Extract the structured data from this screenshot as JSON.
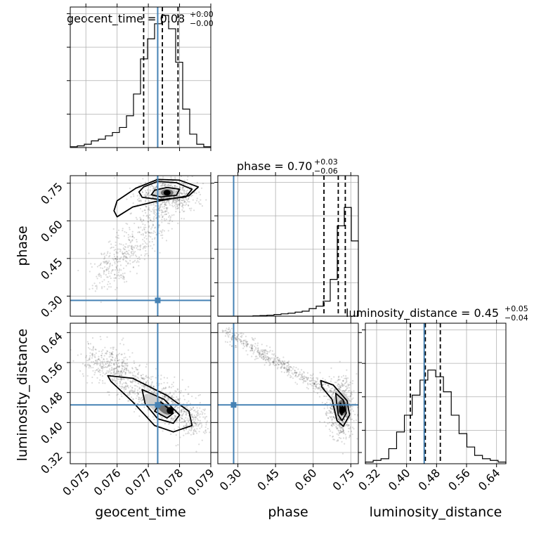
{
  "chart_data": {
    "type": "corner",
    "parameters": [
      "geocent_time",
      "phase",
      "luminosity_distance"
    ],
    "truths": {
      "geocent_time": 0.0773,
      "phase": 0.283,
      "luminosity_distance": 0.447
    },
    "ranges": {
      "geocent_time": [
        0.0745,
        0.079
      ],
      "phase": [
        0.22,
        0.78
      ],
      "luminosity_distance": [
        0.29,
        0.665
      ]
    },
    "ticks": {
      "geocent_time": {
        "values": [
          0.075,
          0.076,
          0.077,
          0.078,
          0.079
        ],
        "labels": [
          "0.075",
          "0.076",
          "0.077",
          "0.078",
          "0.079"
        ]
      },
      "phase": {
        "values": [
          0.3,
          0.45,
          0.6,
          0.75
        ],
        "labels": [
          "0.30",
          "0.45",
          "0.60",
          "0.75"
        ]
      },
      "luminosity_distance": {
        "values": [
          0.32,
          0.4,
          0.48,
          0.56,
          0.64
        ],
        "labels": [
          "0.32",
          "0.40",
          "0.48",
          "0.56",
          "0.64"
        ]
      }
    },
    "titles": {
      "geocent_time": {
        "text": "geocent_time = 0.08",
        "plus": "+0.00",
        "minus": "−0.00"
      },
      "phase": {
        "text": "phase = 0.70",
        "plus": "+0.03",
        "minus": "−0.06"
      },
      "luminosity_distance": {
        "text": "luminosity_distance = 0.45",
        "plus": "+0.05",
        "minus": "−0.04"
      }
    },
    "quantiles": {
      "geocent_time": [
        0.07685,
        0.07745,
        0.07795
      ],
      "phase": [
        0.643,
        0.7,
        0.728
      ],
      "luminosity_distance": [
        0.41,
        0.45,
        0.49
      ]
    },
    "histograms": {
      "geocent_time": [
        0.005,
        0.01,
        0.02,
        0.04,
        0.05,
        0.07,
        0.09,
        0.12,
        0.19,
        0.32,
        0.53,
        0.65,
        0.74,
        0.79,
        0.71,
        0.51,
        0.23,
        0.08,
        0.02,
        0.005
      ],
      "phase": [
        0,
        0,
        0,
        0,
        0,
        0.002,
        0.004,
        0.006,
        0.01,
        0.014,
        0.018,
        0.024,
        0.03,
        0.045,
        0.06,
        0.09,
        0.22,
        0.54,
        0.65,
        0.45
      ],
      "luminosity_distance": [
        0.01,
        0.02,
        0.03,
        0.09,
        0.19,
        0.29,
        0.41,
        0.5,
        0.56,
        0.52,
        0.43,
        0.29,
        0.18,
        0.1,
        0.05,
        0.03,
        0.02,
        0.01
      ]
    },
    "xlabel": [
      "geocent_time",
      "phase",
      "luminosity_distance"
    ],
    "ylabel": [
      "phase",
      "luminosity_distance"
    ],
    "grid": true
  }
}
